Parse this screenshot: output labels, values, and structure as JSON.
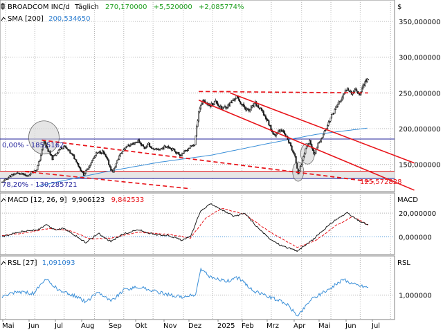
{
  "header": {
    "name": "BROADCOM INC/d",
    "interval": "Täglich",
    "price": "270,170000",
    "change": "+5,520000",
    "change_pct": "+2,085774%",
    "currency": "$"
  },
  "colors": {
    "candle_up": "#ffffff",
    "candle_down": "#1a1a1a",
    "sma": "#3a8fd8",
    "trend": "#e8141a",
    "fib": "#1f1f9a",
    "macd": "#1a1a1a",
    "signal": "#e8141a",
    "rsl": "#3a8fd8",
    "grid": "#b4b4b4",
    "positive": "#22a022",
    "sma_text": "#2f7fd0"
  },
  "sma": {
    "label": "SMA [200]",
    "value": "200,534650"
  },
  "fib": {
    "upper_label": "0,00% - 185,5162",
    "upper_value": 185.5,
    "lower_label": "78,20% - 130,285721",
    "lower_value": 130.3,
    "mid_value": 140.5
  },
  "trend_label": "125,572828",
  "price_axis": {
    "ticks": [
      {
        "value": 350,
        "label": "350,000000"
      },
      {
        "value": 300,
        "label": "300,000000"
      },
      {
        "value": 250,
        "label": "250,000000"
      },
      {
        "value": 200,
        "label": "200,000000"
      },
      {
        "value": 150,
        "label": "150,000000"
      }
    ]
  },
  "macd": {
    "label": "MACD [12, 26, 9]",
    "macd_value": "9,906123",
    "signal_value": "9,842533",
    "axis_title": "MACD",
    "ticks": [
      {
        "value": 20,
        "label": "20,000000"
      },
      {
        "value": 0,
        "label": "0,000000"
      }
    ]
  },
  "rsl": {
    "label": "RSL [27]",
    "value": "1,091093",
    "axis_title": "RSL",
    "ticks": [
      {
        "value": 1.0,
        "label": "1,000000"
      }
    ]
  },
  "x_axis": {
    "labels": [
      "Mai",
      "Jun",
      "Jul",
      "Aug",
      "Sep",
      "Okt",
      "Nov",
      "Dez",
      "2025",
      "Feb",
      "Mrz",
      "Apr",
      "Mai",
      "Jun",
      "Jul"
    ]
  },
  "chart_data": {
    "type": "candlestick",
    "price_range": [
      112,
      380
    ],
    "macd_range": [
      -15,
      37
    ],
    "rsl_range": [
      0.72,
      1.45
    ],
    "keypoints": [
      {
        "d": 0,
        "p": 125
      },
      {
        "d": 7,
        "p": 133
      },
      {
        "d": 14,
        "p": 138
      },
      {
        "d": 20,
        "p": 136
      },
      {
        "d": 24,
        "p": 133
      },
      {
        "d": 28,
        "p": 139
      },
      {
        "d": 33,
        "p": 143
      },
      {
        "d": 36,
        "p": 157
      },
      {
        "d": 40,
        "p": 183
      },
      {
        "d": 43,
        "p": 172
      },
      {
        "d": 48,
        "p": 158
      },
      {
        "d": 54,
        "p": 170
      },
      {
        "d": 59,
        "p": 176
      },
      {
        "d": 66,
        "p": 165
      },
      {
        "d": 71,
        "p": 155
      },
      {
        "d": 74,
        "p": 145
      },
      {
        "d": 78,
        "p": 136
      },
      {
        "d": 82,
        "p": 145
      },
      {
        "d": 86,
        "p": 155
      },
      {
        "d": 90,
        "p": 165
      },
      {
        "d": 96,
        "p": 168
      },
      {
        "d": 100,
        "p": 158
      },
      {
        "d": 104,
        "p": 143
      },
      {
        "d": 106,
        "p": 140
      },
      {
        "d": 112,
        "p": 162
      },
      {
        "d": 118,
        "p": 175
      },
      {
        "d": 124,
        "p": 178
      },
      {
        "d": 130,
        "p": 183
      },
      {
        "d": 136,
        "p": 173
      },
      {
        "d": 140,
        "p": 178
      },
      {
        "d": 145,
        "p": 170
      },
      {
        "d": 152,
        "p": 172
      },
      {
        "d": 158,
        "p": 176
      },
      {
        "d": 164,
        "p": 170
      },
      {
        "d": 170,
        "p": 163
      },
      {
        "d": 175,
        "p": 168
      },
      {
        "d": 180,
        "p": 175
      },
      {
        "d": 184,
        "p": 178
      },
      {
        "d": 188,
        "p": 225
      },
      {
        "d": 192,
        "p": 240
      },
      {
        "d": 198,
        "p": 232
      },
      {
        "d": 204,
        "p": 238
      },
      {
        "d": 210,
        "p": 228
      },
      {
        "d": 216,
        "p": 232
      },
      {
        "d": 224,
        "p": 245
      },
      {
        "d": 230,
        "p": 232
      },
      {
        "d": 236,
        "p": 225
      },
      {
        "d": 242,
        "p": 235
      },
      {
        "d": 248,
        "p": 225
      },
      {
        "d": 254,
        "p": 210
      },
      {
        "d": 260,
        "p": 190
      },
      {
        "d": 266,
        "p": 200
      },
      {
        "d": 272,
        "p": 188
      },
      {
        "d": 276,
        "p": 175
      },
      {
        "d": 280,
        "p": 160
      },
      {
        "d": 283,
        "p": 138
      },
      {
        "d": 286,
        "p": 150
      },
      {
        "d": 290,
        "p": 172
      },
      {
        "d": 294,
        "p": 182
      },
      {
        "d": 298,
        "p": 163
      },
      {
        "d": 302,
        "p": 178
      },
      {
        "d": 308,
        "p": 195
      },
      {
        "d": 314,
        "p": 215
      },
      {
        "d": 320,
        "p": 232
      },
      {
        "d": 326,
        "p": 245
      },
      {
        "d": 330,
        "p": 258
      },
      {
        "d": 334,
        "p": 250
      },
      {
        "d": 338,
        "p": 255
      },
      {
        "d": 342,
        "p": 248
      },
      {
        "d": 346,
        "p": 264
      },
      {
        "d": 350,
        "p": 270
      }
    ],
    "sma_points": [
      {
        "d": 35,
        "p": 120
      },
      {
        "d": 100,
        "p": 140
      },
      {
        "d": 150,
        "p": 153
      },
      {
        "d": 200,
        "p": 163
      },
      {
        "d": 250,
        "p": 178
      },
      {
        "d": 300,
        "p": 192
      },
      {
        "d": 350,
        "p": 201
      }
    ],
    "macd_points": [
      {
        "d": 0,
        "p": 0
      },
      {
        "d": 15,
        "p": 4
      },
      {
        "d": 35,
        "p": 6
      },
      {
        "d": 42,
        "p": 10
      },
      {
        "d": 50,
        "p": 6
      },
      {
        "d": 60,
        "p": 7
      },
      {
        "d": 70,
        "p": 1
      },
      {
        "d": 80,
        "p": -5
      },
      {
        "d": 92,
        "p": 3
      },
      {
        "d": 104,
        "p": -4
      },
      {
        "d": 115,
        "p": 2
      },
      {
        "d": 130,
        "p": 6
      },
      {
        "d": 145,
        "p": 2
      },
      {
        "d": 160,
        "p": 1
      },
      {
        "d": 172,
        "p": -3
      },
      {
        "d": 180,
        "p": 0
      },
      {
        "d": 190,
        "p": 22
      },
      {
        "d": 200,
        "p": 28
      },
      {
        "d": 212,
        "p": 22
      },
      {
        "d": 222,
        "p": 17
      },
      {
        "d": 232,
        "p": 20
      },
      {
        "d": 244,
        "p": 8
      },
      {
        "d": 256,
        "p": -2
      },
      {
        "d": 266,
        "p": -7
      },
      {
        "d": 282,
        "p": -12
      },
      {
        "d": 295,
        "p": -4
      },
      {
        "d": 305,
        "p": 4
      },
      {
        "d": 318,
        "p": 14
      },
      {
        "d": 330,
        "p": 20
      },
      {
        "d": 340,
        "p": 14
      },
      {
        "d": 350,
        "p": 10
      }
    ],
    "signal_points": [
      {
        "d": 0,
        "p": 1
      },
      {
        "d": 20,
        "p": 3
      },
      {
        "d": 45,
        "p": 7
      },
      {
        "d": 65,
        "p": 5
      },
      {
        "d": 85,
        "p": -2
      },
      {
        "d": 105,
        "p": -1
      },
      {
        "d": 130,
        "p": 4
      },
      {
        "d": 160,
        "p": 2
      },
      {
        "d": 180,
        "p": -1
      },
      {
        "d": 195,
        "p": 16
      },
      {
        "d": 210,
        "p": 24
      },
      {
        "d": 232,
        "p": 19
      },
      {
        "d": 256,
        "p": 4
      },
      {
        "d": 282,
        "p": -9
      },
      {
        "d": 300,
        "p": -3
      },
      {
        "d": 320,
        "p": 10
      },
      {
        "d": 335,
        "p": 17
      },
      {
        "d": 350,
        "p": 10
      }
    ],
    "rsl_points": [
      {
        "d": 0,
        "p": 0.98
      },
      {
        "d": 15,
        "p": 1.04
      },
      {
        "d": 30,
        "p": 1.02
      },
      {
        "d": 42,
        "p": 1.18
      },
      {
        "d": 55,
        "p": 1.05
      },
      {
        "d": 72,
        "p": 0.98
      },
      {
        "d": 80,
        "p": 0.92
      },
      {
        "d": 92,
        "p": 1.04
      },
      {
        "d": 104,
        "p": 0.93
      },
      {
        "d": 118,
        "p": 1.07
      },
      {
        "d": 132,
        "p": 1.09
      },
      {
        "d": 150,
        "p": 1.03
      },
      {
        "d": 170,
        "p": 0.98
      },
      {
        "d": 185,
        "p": 1.0
      },
      {
        "d": 190,
        "p": 1.3
      },
      {
        "d": 200,
        "p": 1.2
      },
      {
        "d": 215,
        "p": 1.16
      },
      {
        "d": 226,
        "p": 1.2
      },
      {
        "d": 240,
        "p": 1.05
      },
      {
        "d": 262,
        "p": 0.95
      },
      {
        "d": 272,
        "p": 0.9
      },
      {
        "d": 283,
        "p": 0.76
      },
      {
        "d": 295,
        "p": 0.95
      },
      {
        "d": 310,
        "p": 1.05
      },
      {
        "d": 326,
        "p": 1.18
      },
      {
        "d": 338,
        "p": 1.12
      },
      {
        "d": 350,
        "p": 1.09
      }
    ]
  }
}
